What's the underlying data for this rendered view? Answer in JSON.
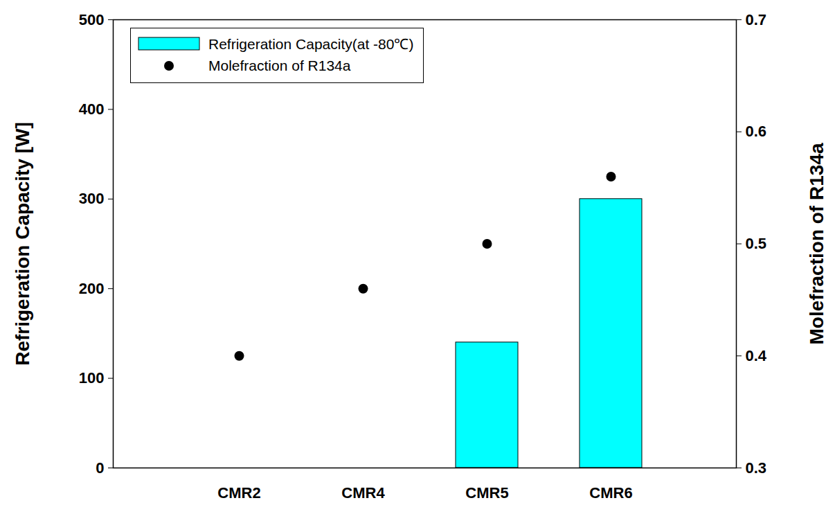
{
  "chart_data": {
    "type": "bar",
    "categories": [
      "CMR2",
      "CMR4",
      "CMR5",
      "CMR6"
    ],
    "series": [
      {
        "name": "Refrigeration Capacity(at -80℃)",
        "type": "bar",
        "color": "#00ffff",
        "values": [
          null,
          null,
          140,
          300
        ]
      },
      {
        "name": "Molefraction of R134a",
        "type": "scatter",
        "axis": "y2",
        "color": "#000000",
        "marker": "circle",
        "values": [
          0.4,
          0.46,
          0.5,
          0.56
        ]
      }
    ],
    "ylabel": "Refrigeration Capacity [W]",
    "y2label": "Molefraction of R134a",
    "ylim": [
      0,
      500
    ],
    "yticks": [
      0,
      100,
      200,
      300,
      400,
      500
    ],
    "y2lim": [
      0.3,
      0.7
    ],
    "y2ticks": [
      0.3,
      0.4,
      0.5,
      0.6,
      0.7
    ],
    "legend": "upper left"
  }
}
